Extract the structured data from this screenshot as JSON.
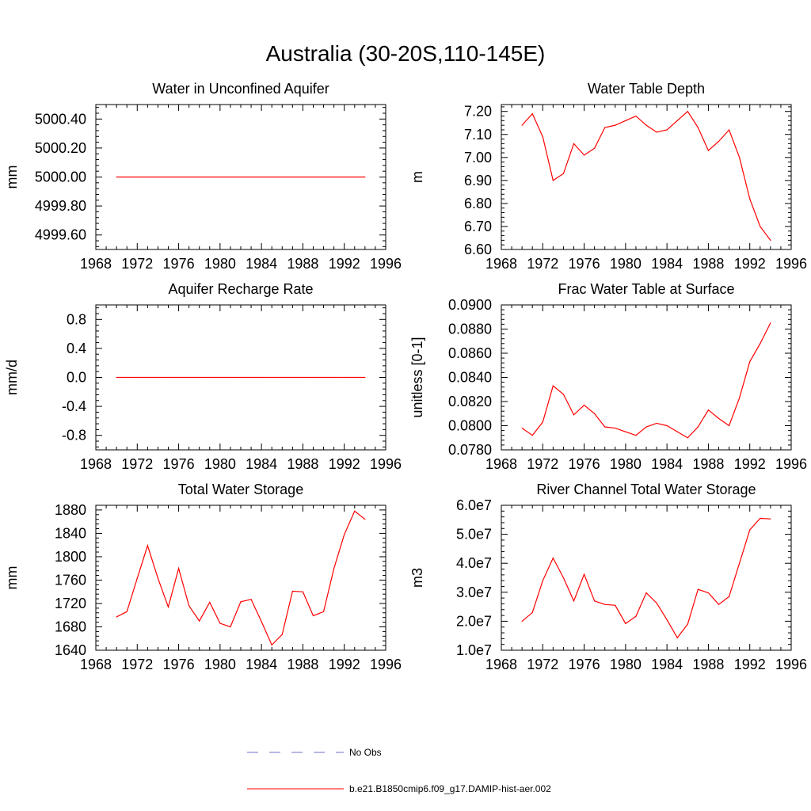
{
  "figure": {
    "title": "Australia (30-20S,110-145E)"
  },
  "legend": {
    "entries": [
      {
        "label": "No Obs",
        "color": "#6f6fcf",
        "style": "dashed"
      },
      {
        "label": "b.e21.B1850cmip6.f09_g17.DAMIP-hist-aer.002",
        "color": "#ff0000",
        "style": "solid"
      }
    ]
  },
  "chart_data": [
    {
      "type": "line",
      "title": "Water in Unconfined Aquifer",
      "xlabel": "",
      "ylabel": "mm",
      "xlim": [
        1968,
        1996
      ],
      "ylim": [
        4999.5,
        5000.5
      ],
      "xticks": [
        1968,
        1972,
        1976,
        1980,
        1984,
        1988,
        1992,
        1996
      ],
      "xtick_labels": [
        "1968",
        "1972",
        "1976",
        "1980",
        "1984",
        "1988",
        "1992",
        "1996"
      ],
      "yticks": [
        4999.6,
        4999.8,
        5000.0,
        5000.2,
        5000.4
      ],
      "ytick_labels": [
        "4999.60",
        "4999.80",
        "5000.00",
        "5000.20",
        "5000.40"
      ],
      "x": [
        1970,
        1971,
        1972,
        1973,
        1974,
        1975,
        1976,
        1977,
        1978,
        1979,
        1980,
        1981,
        1982,
        1983,
        1984,
        1985,
        1986,
        1987,
        1988,
        1989,
        1990,
        1991,
        1992,
        1993,
        1994
      ],
      "series": [
        {
          "color": "#ff0000",
          "values": [
            5000,
            5000,
            5000,
            5000,
            5000,
            5000,
            5000,
            5000,
            5000,
            5000,
            5000,
            5000,
            5000,
            5000,
            5000,
            5000,
            5000,
            5000,
            5000,
            5000,
            5000,
            5000,
            5000,
            5000,
            5000
          ]
        }
      ]
    },
    {
      "type": "line",
      "title": "Water Table Depth",
      "xlabel": "",
      "ylabel": "m",
      "xlim": [
        1968,
        1996
      ],
      "ylim": [
        6.6,
        7.23
      ],
      "xticks": [
        1968,
        1972,
        1976,
        1980,
        1984,
        1988,
        1992,
        1996
      ],
      "xtick_labels": [
        "1968",
        "1972",
        "1976",
        "1980",
        "1984",
        "1988",
        "1992",
        "1996"
      ],
      "yticks": [
        6.6,
        6.7,
        6.8,
        6.9,
        7.0,
        7.1,
        7.2
      ],
      "ytick_labels": [
        "6.60",
        "6.70",
        "6.80",
        "6.90",
        "7.00",
        "7.10",
        "7.20"
      ],
      "x": [
        1970,
        1971,
        1972,
        1973,
        1974,
        1975,
        1976,
        1977,
        1978,
        1979,
        1980,
        1981,
        1982,
        1983,
        1984,
        1985,
        1986,
        1987,
        1988,
        1989,
        1990,
        1991,
        1992,
        1993,
        1994
      ],
      "series": [
        {
          "color": "#ff0000",
          "values": [
            7.14,
            7.19,
            7.09,
            6.9,
            6.93,
            7.06,
            7.01,
            7.04,
            7.13,
            7.14,
            7.16,
            7.18,
            7.14,
            7.11,
            7.12,
            7.16,
            7.2,
            7.13,
            7.03,
            7.07,
            7.12,
            7.0,
            6.82,
            6.7,
            6.64
          ]
        }
      ]
    },
    {
      "type": "line",
      "title": "Aquifer Recharge Rate",
      "xlabel": "",
      "ylabel": "mm/d",
      "xlim": [
        1968,
        1996
      ],
      "ylim": [
        -1.0,
        1.0
      ],
      "xticks": [
        1968,
        1972,
        1976,
        1980,
        1984,
        1988,
        1992,
        1996
      ],
      "xtick_labels": [
        "1968",
        "1972",
        "1976",
        "1980",
        "1984",
        "1988",
        "1992",
        "1996"
      ],
      "yticks": [
        -0.8,
        -0.4,
        0.0,
        0.4,
        0.8
      ],
      "ytick_labels": [
        "-0.8",
        "-0.4",
        "0.0",
        "0.4",
        "0.8"
      ],
      "x": [
        1970,
        1971,
        1972,
        1973,
        1974,
        1975,
        1976,
        1977,
        1978,
        1979,
        1980,
        1981,
        1982,
        1983,
        1984,
        1985,
        1986,
        1987,
        1988,
        1989,
        1990,
        1991,
        1992,
        1993,
        1994
      ],
      "series": [
        {
          "color": "#ff0000",
          "values": [
            0,
            0,
            0,
            0,
            0,
            0,
            0,
            0,
            0,
            0,
            0,
            0,
            0,
            0,
            0,
            0,
            0,
            0,
            0,
            0,
            0,
            0,
            0,
            0,
            0
          ]
        }
      ]
    },
    {
      "type": "line",
      "title": "Frac Water Table at Surface",
      "xlabel": "",
      "ylabel": "unitless [0-1]",
      "xlim": [
        1968,
        1996
      ],
      "ylim": [
        0.078,
        0.09
      ],
      "xticks": [
        1968,
        1972,
        1976,
        1980,
        1984,
        1988,
        1992,
        1996
      ],
      "xtick_labels": [
        "1968",
        "1972",
        "1976",
        "1980",
        "1984",
        "1988",
        "1992",
        "1996"
      ],
      "yticks": [
        0.078,
        0.08,
        0.082,
        0.084,
        0.086,
        0.088,
        0.09
      ],
      "ytick_labels": [
        "0.0780",
        "0.0800",
        "0.0820",
        "0.0840",
        "0.0860",
        "0.0880",
        "0.0900"
      ],
      "x": [
        1970,
        1971,
        1972,
        1973,
        1974,
        1975,
        1976,
        1977,
        1978,
        1979,
        1980,
        1981,
        1982,
        1983,
        1984,
        1985,
        1986,
        1987,
        1988,
        1989,
        1990,
        1991,
        1992,
        1993,
        1994
      ],
      "series": [
        {
          "color": "#ff0000",
          "values": [
            0.0798,
            0.0792,
            0.0803,
            0.0833,
            0.0826,
            0.0809,
            0.0817,
            0.081,
            0.0799,
            0.0798,
            0.0795,
            0.0792,
            0.0799,
            0.0802,
            0.08,
            0.0795,
            0.079,
            0.0799,
            0.0813,
            0.0806,
            0.08,
            0.0823,
            0.0853,
            0.0868,
            0.0885
          ]
        }
      ]
    },
    {
      "type": "line",
      "title": "Total Water Storage",
      "xlabel": "",
      "ylabel": "mm",
      "xlim": [
        1968,
        1996
      ],
      "ylim": [
        1640,
        1888
      ],
      "xticks": [
        1968,
        1972,
        1976,
        1980,
        1984,
        1988,
        1992,
        1996
      ],
      "xtick_labels": [
        "1968",
        "1972",
        "1976",
        "1980",
        "1984",
        "1988",
        "1992",
        "1996"
      ],
      "yticks": [
        1640,
        1680,
        1720,
        1760,
        1800,
        1840,
        1880
      ],
      "ytick_labels": [
        "1640",
        "1680",
        "1720",
        "1760",
        "1800",
        "1840",
        "1880"
      ],
      "x": [
        1970,
        1971,
        1972,
        1973,
        1974,
        1975,
        1976,
        1977,
        1978,
        1979,
        1980,
        1981,
        1982,
        1983,
        1984,
        1985,
        1986,
        1987,
        1988,
        1989,
        1990,
        1991,
        1992,
        1993,
        1994
      ],
      "series": [
        {
          "color": "#ff0000",
          "values": [
            1697,
            1706,
            1763,
            1819,
            1763,
            1714,
            1780,
            1716,
            1690,
            1722,
            1686,
            1680,
            1723,
            1727,
            1689,
            1649,
            1667,
            1741,
            1740,
            1699,
            1706,
            1780,
            1838,
            1878,
            1864
          ]
        }
      ]
    },
    {
      "type": "line",
      "title": "River Channel Total Water Storage",
      "xlabel": "",
      "ylabel": "m3",
      "xlim": [
        1968,
        1996
      ],
      "ylim": [
        10000000,
        60000000
      ],
      "xticks": [
        1968,
        1972,
        1976,
        1980,
        1984,
        1988,
        1992,
        1996
      ],
      "xtick_labels": [
        "1968",
        "1972",
        "1976",
        "1980",
        "1984",
        "1988",
        "1992",
        "1996"
      ],
      "yticks": [
        10000000,
        20000000,
        30000000,
        40000000,
        50000000,
        60000000
      ],
      "ytick_labels": [
        "1.0e7",
        "2.0e7",
        "3.0e7",
        "4.0e7",
        "5.0e7",
        "6.0e7"
      ],
      "x": [
        1970,
        1971,
        1972,
        1973,
        1974,
        1975,
        1976,
        1977,
        1978,
        1979,
        1980,
        1981,
        1982,
        1983,
        1984,
        1985,
        1986,
        1987,
        1988,
        1989,
        1990,
        1991,
        1992,
        1993,
        1994
      ],
      "series": [
        {
          "color": "#ff0000",
          "values": [
            20000000,
            23000000,
            34000000,
            41800000,
            35000000,
            27000000,
            36200000,
            27000000,
            25800000,
            25500000,
            19200000,
            21700000,
            29800000,
            26300000,
            20500000,
            14300000,
            19000000,
            31000000,
            29800000,
            25800000,
            28500000,
            40000000,
            51500000,
            55500000,
            55300000
          ]
        }
      ]
    }
  ]
}
